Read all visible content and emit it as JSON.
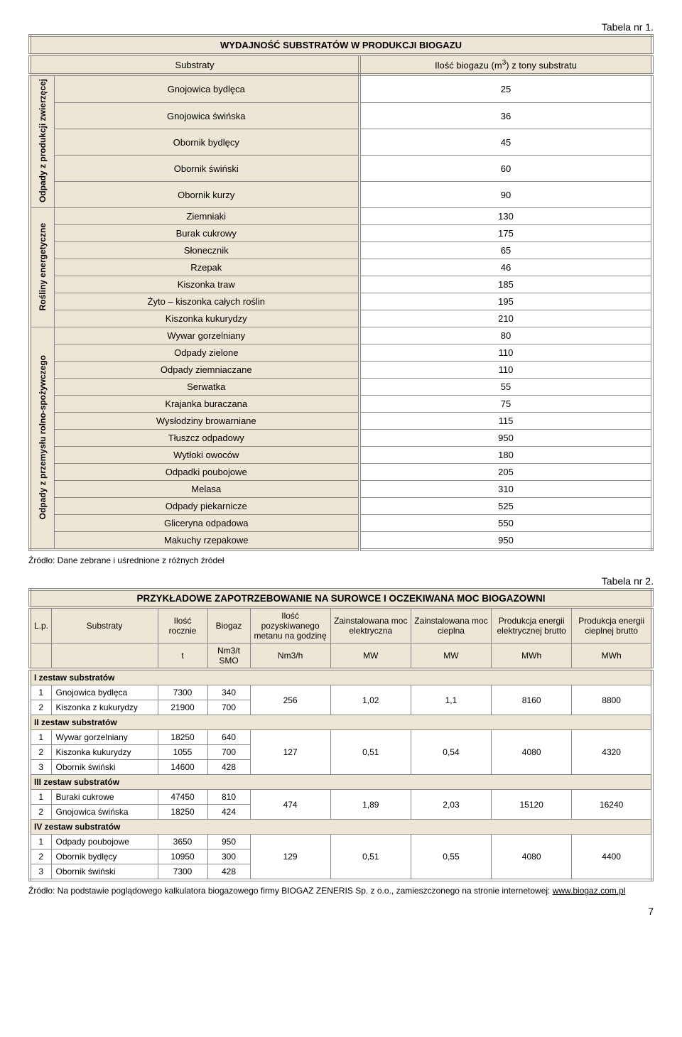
{
  "page_number": "7",
  "table1": {
    "caption": "Tabela nr 1.",
    "title": "WYDAJNOŚĆ SUBSTRATÓW W PRODUKCJI BIOGAZU",
    "col1": "Substraty",
    "col2_pre": "Ilość biogazu (m",
    "col2_sup": "3",
    "col2_post": ") z tony substratu",
    "groups": [
      {
        "label": "Odpady\nz produkcji\nzwierzęcej",
        "rows": [
          {
            "name": "Gnojowica bydlęca",
            "val": "25"
          },
          {
            "name": "Gnojowica świńska",
            "val": "36"
          },
          {
            "name": "Obornik bydlęcy",
            "val": "45"
          },
          {
            "name": "Obornik świński",
            "val": "60"
          },
          {
            "name": "Obornik kurzy",
            "val": "90"
          }
        ]
      },
      {
        "label": "Rośliny\nenergetyczne",
        "rows": [
          {
            "name": "Ziemniaki",
            "val": "130"
          },
          {
            "name": "Burak cukrowy",
            "val": "175"
          },
          {
            "name": "Słonecznik",
            "val": "65"
          },
          {
            "name": "Rzepak",
            "val": "46"
          },
          {
            "name": "Kiszonka traw",
            "val": "185"
          },
          {
            "name": "Żyto – kiszonka całych roślin",
            "val": "195"
          },
          {
            "name": "Kiszonka kukurydzy",
            "val": "210"
          }
        ]
      },
      {
        "label": "Odpady z przemysłu\nrolno-spożywczego",
        "rows": [
          {
            "name": "Wywar gorzelniany",
            "val": "80"
          },
          {
            "name": "Odpady zielone",
            "val": "110"
          },
          {
            "name": "Odpady ziemniaczane",
            "val": "110"
          },
          {
            "name": "Serwatka",
            "val": "55"
          },
          {
            "name": "Krajanka buraczana",
            "val": "75"
          },
          {
            "name": "Wysłodziny browarniane",
            "val": "115"
          },
          {
            "name": "Tłuszcz odpadowy",
            "val": "950"
          },
          {
            "name": "Wytłoki owoców",
            "val": "180"
          },
          {
            "name": "Odpadki poubojowe",
            "val": "205"
          },
          {
            "name": "Melasa",
            "val": "310"
          },
          {
            "name": "Odpady piekarnicze",
            "val": "525"
          },
          {
            "name": "Gliceryna odpadowa",
            "val": "550"
          },
          {
            "name": "Makuchy rzepakowe",
            "val": "950"
          }
        ]
      }
    ],
    "source": "Źródło: Dane zebrane i uśrednione z różnych źródeł"
  },
  "table2": {
    "caption": "Tabela nr 2.",
    "title": "PRZYKŁADOWE  ZAPOTRZEBOWANIE NA SUROWCE I OCZEKIWANA MOC BIOGAZOWNI",
    "headers": [
      "L.p.",
      "Substraty",
      "Ilość rocznie",
      "Biogaz",
      "Ilość pozyskiwanego metanu na godzinę",
      "Zainstalowana moc elektryczna",
      "Zainstalowana moc cieplna",
      "Produkcja energii elektrycznej brutto",
      "Produkcja energii cieplnej brutto"
    ],
    "units_t": "t",
    "units_nm3t_pre": "Nm",
    "units_nm3t_sup": "3",
    "units_nm3t_post": "/t SMO",
    "units_nm3h_pre": "Nm",
    "units_nm3h_sup": "3",
    "units_nm3h_post": "/h",
    "units_mw": "MW",
    "units_mwh": "MWh",
    "sections": [
      {
        "label": "I zestaw substratów",
        "rows": [
          {
            "lp": "1",
            "name": "Gnojowica bydlęca",
            "qty": "7300",
            "bio": "340"
          },
          {
            "lp": "2",
            "name": "Kiszonka z kukurydzy",
            "qty": "21900",
            "bio": "700"
          }
        ],
        "merge": {
          "nm3h": "256",
          "mwe": "1,02",
          "mwc": "1,1",
          "ee": "8160",
          "ec": "8800"
        }
      },
      {
        "label": "II zestaw substratów",
        "rows": [
          {
            "lp": "1",
            "name": "Wywar gorzelniany",
            "qty": "18250",
            "bio": "640"
          },
          {
            "lp": "2",
            "name": "Kiszonka kukurydzy",
            "qty": "1055",
            "bio": "700"
          },
          {
            "lp": "3",
            "name": "Obornik świński",
            "qty": "14600",
            "bio": "428"
          }
        ],
        "merge": {
          "nm3h": "127",
          "mwe": "0,51",
          "mwc": "0,54",
          "ee": "4080",
          "ec": "4320"
        }
      },
      {
        "label": "III zestaw substratów",
        "rows": [
          {
            "lp": "1",
            "name": "Buraki cukrowe",
            "qty": "47450",
            "bio": "810"
          },
          {
            "lp": "2",
            "name": "Gnojowica świńska",
            "qty": "18250",
            "bio": "424"
          }
        ],
        "merge": {
          "nm3h": "474",
          "mwe": "1,89",
          "mwc": "2,03",
          "ee": "15120",
          "ec": "16240"
        }
      },
      {
        "label": "IV zestaw substratów",
        "rows": [
          {
            "lp": "1",
            "name": "Odpady poubojowe",
            "qty": "3650",
            "bio": "950"
          },
          {
            "lp": "2",
            "name": "Obornik bydlęcy",
            "qty": "10950",
            "bio": "300"
          },
          {
            "lp": "3",
            "name": "Obornik świński",
            "qty": "7300",
            "bio": "428"
          }
        ],
        "merge": {
          "nm3h": "129",
          "mwe": "0,51",
          "mwc": "0,55",
          "ee": "4080",
          "ec": "4400"
        }
      }
    ],
    "source": "Źródło: Na podstawie poglądowego kalkulatora biogazowego firmy BIOGAZ ZENERIS Sp. z o.o., zamieszczonego na stronie internetowej: www.biogaz.com.pl",
    "source_link": "www.biogaz.com.pl"
  }
}
